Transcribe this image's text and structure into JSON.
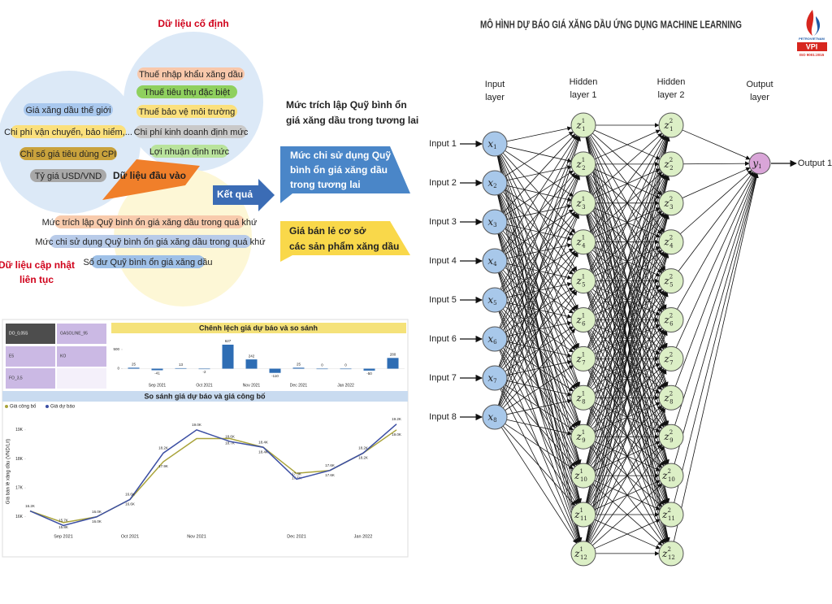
{
  "header": {
    "title": "MÔ HÌNH DỰ BÁO GIÁ XĂNG DẦU ỨNG DỤNG MACHINE LEARNING"
  },
  "logo": {
    "brand": "PETROVIETNAM",
    "name": "VPI",
    "iso": "ISO 9001:2015"
  },
  "inputs_diagram": {
    "fixed_title": "Dữ liệu cố định",
    "fixed": [
      {
        "text": "Thuế nhập khẩu xăng dầu",
        "color": "#f8c8ab"
      },
      {
        "text": "Thuế tiêu thụ đặc biệt",
        "color": "#8fd05e"
      },
      {
        "text": "Thuế bảo vệ môi trường",
        "color": "#fbe07c"
      },
      {
        "text": "Chi phí kinh doanh định mức",
        "color": "#c9c9c9"
      },
      {
        "text": "Lợi nhuận định mức",
        "color": "#b9e39c"
      }
    ],
    "external": [
      {
        "text": "Giá xăng dầu thế giới",
        "color": "#a9c8ee"
      },
      {
        "text": "Chi phí vận chuyển, bảo hiểm,...",
        "color": "#fbe07c"
      },
      {
        "text": "Chỉ số giá tiêu dùng CPI",
        "color": "#c9a23c"
      },
      {
        "text": "Tỷ giá USD/VND",
        "color": "#a8a8a8"
      }
    ],
    "center": "Dữ liệu đầu vào",
    "updated_title": [
      "Dữ liệu cập nhật",
      "liên tục"
    ],
    "updated": [
      {
        "text": "Mức trích lập Quỹ bình ổn giá xăng dầu trong quá khứ",
        "color": "#f8cbad"
      },
      {
        "text": "Mức chi sử dụng Quỹ bình ổn giá xăng dầu trong quá khứ",
        "color": "#b8cbe9"
      },
      {
        "text": "Số dư Quỹ bình ổn giá xăng dầu",
        "color": "#9fc1e8"
      }
    ]
  },
  "arrow": "Kết quả",
  "results": {
    "top": [
      "Mức trích lập Quỹ bình ổn",
      "giá xăng dầu trong tương lai"
    ],
    "blue": [
      "Mức chi sử dụng Quỹ",
      "bình ổn giá xăng dầu",
      "trong tương lai"
    ],
    "yellow": [
      "Giá bán lẻ cơ sở",
      "các sản phẩm xăng dầu"
    ]
  },
  "dashboard": {
    "slicers": [
      "DO_0,05S",
      "GASOLINE_95",
      "E5",
      "KO",
      "FO_3,5"
    ]
  },
  "chart_data": [
    {
      "type": "bar",
      "title": "Chênh lệch giá dự báo và so sánh",
      "categories": [
        null,
        "Sep 2021",
        null,
        "Oct 2021",
        null,
        "Nov 2021",
        null,
        "Dec 2021",
        null,
        "Jan 2022",
        null,
        null
      ],
      "values": [
        25,
        -41,
        13,
        -2,
        627,
        242,
        -110,
        25,
        0,
        0,
        -50,
        280
      ],
      "color": "#2e6db4",
      "ylim": [
        -180,
        860
      ],
      "yticks": [
        0,
        500
      ]
    },
    {
      "type": "line",
      "title": "So sánh giá dự báo và giá công bố",
      "y_label": "Giá bán lẻ xăng dầu (VND/Lít)",
      "categories": [
        null,
        "Sep 2021",
        null,
        "Oct 2021",
        null,
        "Nov 2021",
        null,
        null,
        "Dec 2021",
        null,
        "Jan 2022",
        null
      ],
      "series": [
        {
          "name": "Giá công bố",
          "color": "#a9a33a",
          "values": [
            16200,
            15800,
            16000,
            16600,
            17900,
            18700,
            18700,
            18400,
            17500,
            17600,
            18200,
            19000
          ],
          "value_labels": [
            null,
            "15.8K",
            "16.0K",
            "16.6K",
            "17.9K",
            null,
            "18.7K",
            "18.4K",
            "17.5K",
            "17.6K",
            "18.2K",
            "19.0K"
          ]
        },
        {
          "name": "Giá dự báo",
          "color": "#3b4ea3",
          "values": [
            16200,
            15700,
            16000,
            16600,
            18200,
            19000,
            18600,
            18400,
            17300,
            17600,
            18200,
            19200
          ],
          "value_labels": [
            "16.2K",
            "15.7K",
            "16.0K",
            "16.6K",
            "18.2K",
            "19.0K",
            "18.6K",
            "18.4K",
            "17.3K",
            "17.6K",
            "18.2K",
            "19.2K"
          ]
        }
      ],
      "ylim": [
        15600,
        19500
      ],
      "yticks": [
        {
          "value": 16000,
          "label": "16K"
        },
        {
          "value": 17000,
          "label": "17K"
        },
        {
          "value": 18000,
          "label": "18K"
        },
        {
          "value": 19000,
          "label": "19K"
        }
      ]
    }
  ],
  "network": {
    "layer_titles": [
      [
        "Input",
        "layer"
      ],
      [
        "Hidden",
        "layer 1"
      ],
      [
        "Hidden",
        "layer 2"
      ],
      [
        "Output",
        "layer"
      ]
    ],
    "input_labels": [
      "Input 1",
      "Input 2",
      "Input 3",
      "Input 4",
      "Input 5",
      "Input 6",
      "Input 7",
      "Input 8"
    ],
    "input_nodes": [
      {
        "base": "x",
        "sub": "1"
      },
      {
        "base": "x",
        "sub": "2"
      },
      {
        "base": "x",
        "sub": "3"
      },
      {
        "base": "x",
        "sub": "4"
      },
      {
        "base": "x",
        "sub": "5"
      },
      {
        "base": "x",
        "sub": "6"
      },
      {
        "base": "x",
        "sub": "7"
      },
      {
        "base": "x",
        "sub": "8"
      }
    ],
    "hidden1": [
      {
        "base": "z",
        "sup": "1",
        "sub": "1"
      },
      {
        "base": "z",
        "sup": "1",
        "sub": "2"
      },
      {
        "base": "z",
        "sup": "1",
        "sub": "3"
      },
      {
        "base": "z",
        "sup": "1",
        "sub": "4"
      },
      {
        "base": "z",
        "sup": "1",
        "sub": "5"
      },
      {
        "base": "z",
        "sup": "1",
        "sub": "6"
      },
      {
        "base": "z",
        "sup": "1",
        "sub": "7"
      },
      {
        "base": "z",
        "sup": "1",
        "sub": "8"
      },
      {
        "base": "z",
        "sup": "1",
        "sub": "9"
      },
      {
        "base": "z",
        "sup": "1",
        "sub": "10"
      },
      {
        "base": "z",
        "sup": "1",
        "sub": "11"
      },
      {
        "base": "z",
        "sup": "1",
        "sub": "12"
      }
    ],
    "hidden2": [
      {
        "base": "z",
        "sup": "2",
        "sub": "1"
      },
      {
        "base": "z",
        "sup": "2",
        "sub": "2"
      },
      {
        "base": "z",
        "sup": "2",
        "sub": "3"
      },
      {
        "base": "z",
        "sup": "2",
        "sub": "4"
      },
      {
        "base": "z",
        "sup": "2",
        "sub": "5"
      },
      {
        "base": "z",
        "sup": "2",
        "sub": "6"
      },
      {
        "base": "z",
        "sup": "2",
        "sub": "7"
      },
      {
        "base": "z",
        "sup": "2",
        "sub": "8"
      },
      {
        "base": "z",
        "sup": "2",
        "sub": "9"
      },
      {
        "base": "z",
        "sup": "2",
        "sub": "10"
      },
      {
        "base": "z",
        "sup": "2",
        "sub": "11"
      },
      {
        "base": "z",
        "sup": "2",
        "sub": "12"
      }
    ],
    "output_nodes": [
      {
        "base": "y",
        "sub": "1"
      }
    ],
    "output_labels": [
      "Output 1"
    ]
  }
}
